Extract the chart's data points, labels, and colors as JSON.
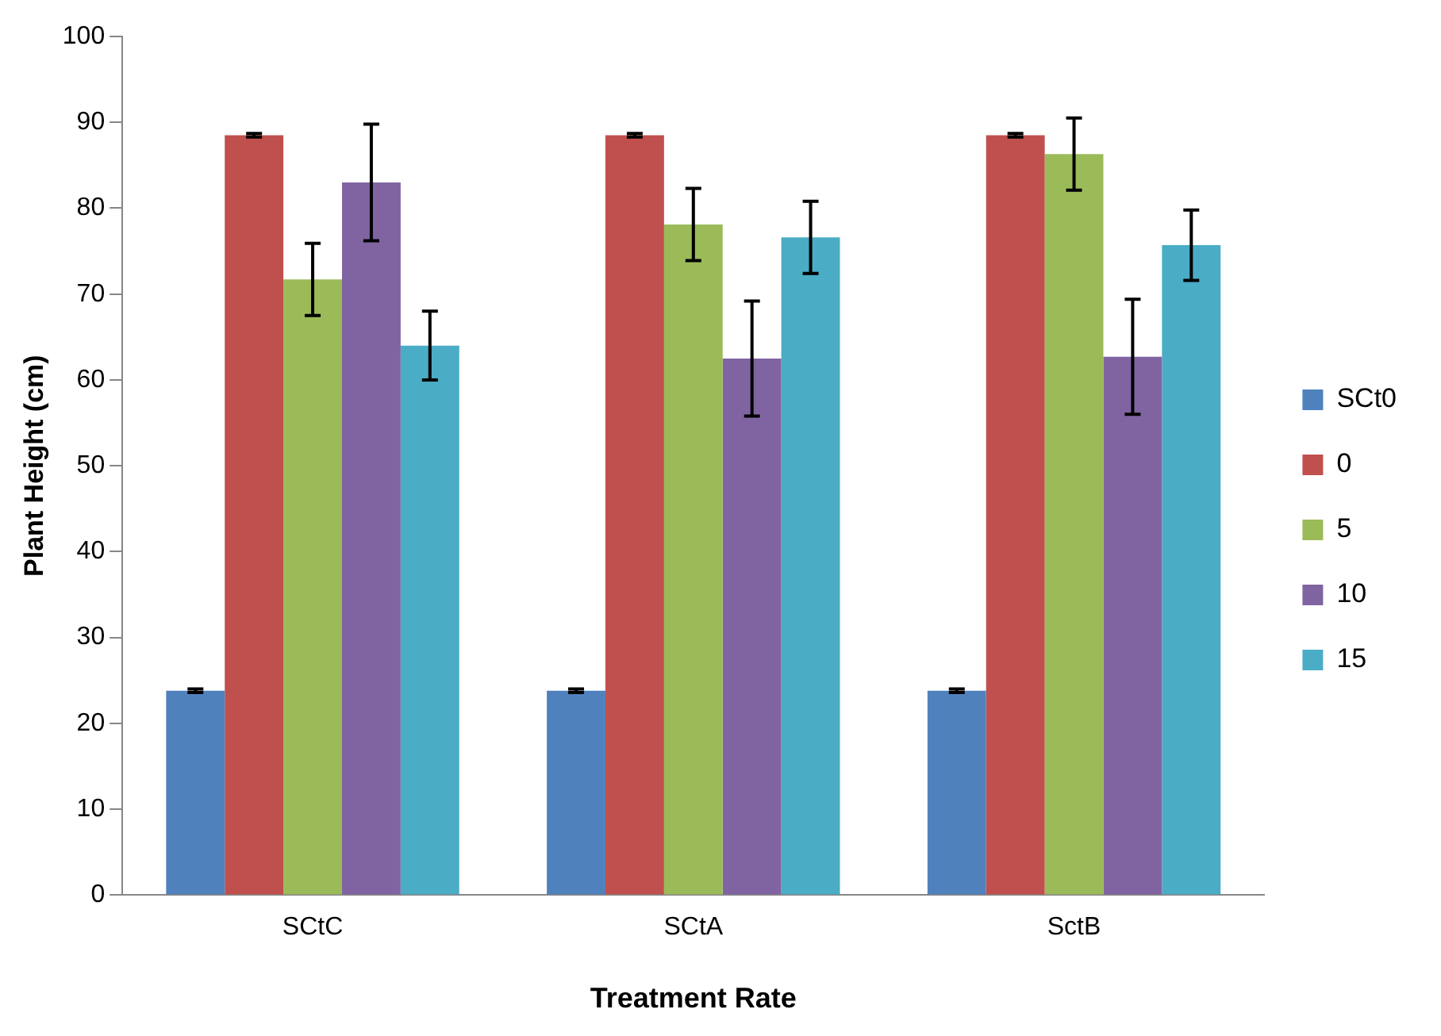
{
  "chart_data": {
    "type": "bar",
    "xlabel": "Treatment Rate",
    "ylabel": "Plant Height (cm)",
    "categories": [
      "SCtC",
      "SCtA",
      "SctB"
    ],
    "series": [
      {
        "name": "SCt0",
        "color": "#4f81bd",
        "values": [
          23.8,
          23.8,
          23.8
        ],
        "errors": [
          0.2,
          0.2,
          0.2
        ]
      },
      {
        "name": "0",
        "color": "#c0504d",
        "values": [
          88.5,
          88.5,
          88.5
        ],
        "errors": [
          0.2,
          0.2,
          0.2
        ]
      },
      {
        "name": "5",
        "color": "#9bbb59",
        "values": [
          71.7,
          78.1,
          86.3
        ],
        "errors": [
          4.2,
          4.2,
          4.2
        ]
      },
      {
        "name": "10",
        "color": "#8064a2",
        "values": [
          83,
          62.5,
          62.7
        ],
        "errors": [
          6.8,
          6.7,
          6.7
        ]
      },
      {
        "name": "15",
        "color": "#4bacc6",
        "values": [
          64,
          76.6,
          75.7
        ],
        "errors": [
          4,
          4.2,
          4.1
        ]
      }
    ],
    "ylim": [
      0,
      100
    ],
    "yticks": [
      0,
      10,
      20,
      30,
      40,
      50,
      60,
      70,
      80,
      90,
      100
    ],
    "grid": false,
    "legend": "right"
  }
}
